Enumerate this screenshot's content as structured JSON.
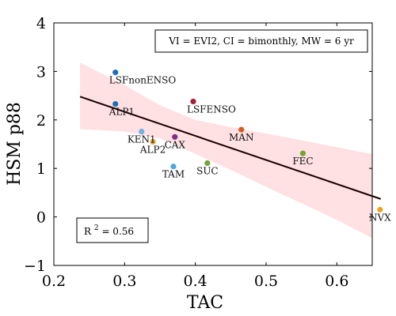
{
  "chart_data": {
    "type": "scatter",
    "xlabel": "TAC",
    "ylabel": "HSM p88",
    "xlim": [
      0.2,
      0.65
    ],
    "ylim": [
      -1,
      4
    ],
    "xticks": [
      "0.2",
      "0.3",
      "0.4",
      "0.5",
      "0.6"
    ],
    "yticks": [
      "4",
      "3",
      "2",
      "1",
      "0",
      "−1"
    ],
    "annotation": "VI = EVI2, CI = bimonthly, MW = 6 yr",
    "r2_label": "R",
    "r2_exp": "2",
    "r2_value": " = 0.56",
    "grid": false,
    "fit_line": {
      "x": [
        0.237,
        0.662
      ],
      "y": [
        2.48,
        0.37
      ],
      "color": "#1a0000"
    },
    "confidence_band": {
      "color": "#ffe0e3",
      "upper": [
        [
          0.237,
          3.18
        ],
        [
          0.3,
          2.72
        ],
        [
          0.35,
          2.3
        ],
        [
          0.4,
          2.0
        ],
        [
          0.45,
          1.85
        ],
        [
          0.5,
          1.72
        ],
        [
          0.55,
          1.58
        ],
        [
          0.6,
          1.44
        ],
        [
          0.662,
          1.26
        ]
      ],
      "lower": [
        [
          0.237,
          1.81
        ],
        [
          0.3,
          1.76
        ],
        [
          0.35,
          1.62
        ],
        [
          0.4,
          1.3
        ],
        [
          0.45,
          0.97
        ],
        [
          0.5,
          0.62
        ],
        [
          0.55,
          0.28
        ],
        [
          0.6,
          -0.06
        ],
        [
          0.662,
          -0.53
        ]
      ]
    },
    "points": [
      {
        "label": "LSFnonENSO",
        "x": 0.287,
        "y": 2.98,
        "color": "#1f6eb5"
      },
      {
        "label": "ALP1",
        "x": 0.287,
        "y": 2.33,
        "color": "#1f6eb5"
      },
      {
        "label": "LSFENSO",
        "x": 0.397,
        "y": 2.38,
        "color": "#a51f36"
      },
      {
        "label": "MAN",
        "x": 0.465,
        "y": 1.8,
        "color": "#d45c22"
      },
      {
        "label": "KEN1",
        "x": 0.324,
        "y": 1.76,
        "color": "#6db3e8"
      },
      {
        "label": "ALP2",
        "x": 0.34,
        "y": 1.55,
        "color": "#e2a23b"
      },
      {
        "label": "CAX",
        "x": 0.371,
        "y": 1.65,
        "color": "#7f2e85"
      },
      {
        "label": "FEC",
        "x": 0.552,
        "y": 1.31,
        "color": "#76a33a"
      },
      {
        "label": "SUC",
        "x": 0.417,
        "y": 1.11,
        "color": "#76a33a"
      },
      {
        "label": "TAM",
        "x": 0.369,
        "y": 1.04,
        "color": "#4ba8e0"
      },
      {
        "label": "NVX",
        "x": 0.661,
        "y": 0.15,
        "color": "#e8a61e"
      }
    ]
  }
}
